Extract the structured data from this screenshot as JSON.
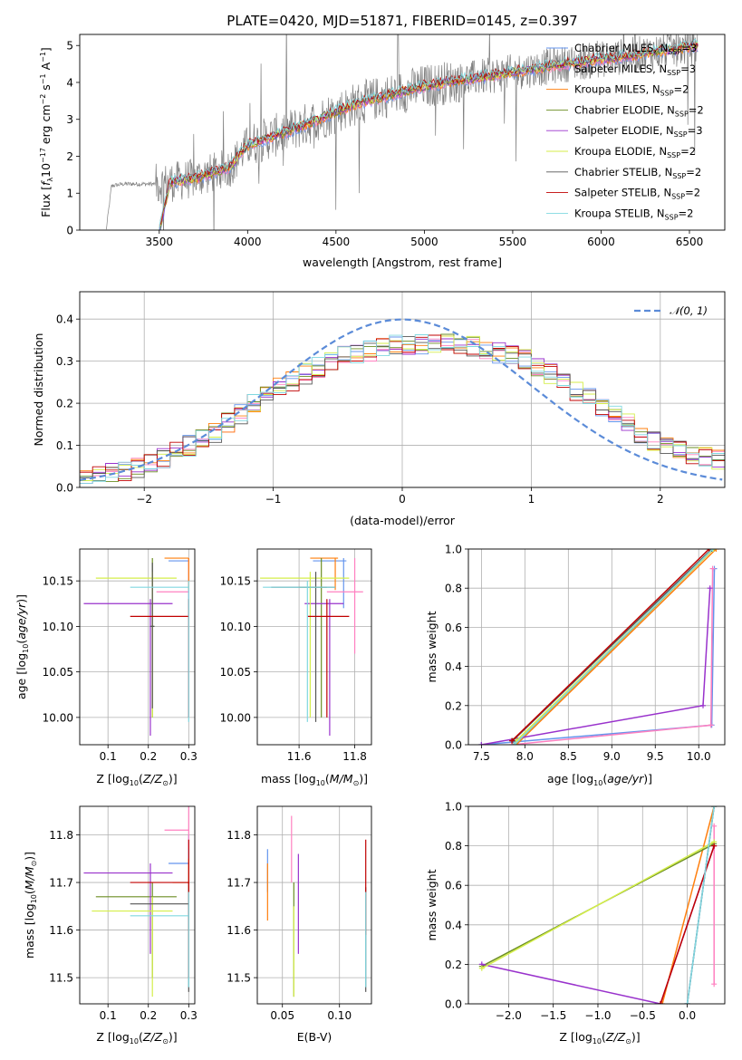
{
  "chart_data": [
    {
      "id": "spectrum",
      "type": "line",
      "title": "PLATE=0420, MJD=51871, FIBERID=0145, z=0.397",
      "xlabel": "wavelength [Angstrom, rest frame]",
      "ylabel": "Flux [fλ10⁻¹⁷ erg cm⁻² s⁻¹ A⁻¹]",
      "xlim": [
        3050,
        6700
      ],
      "ylim": [
        0,
        5.3
      ],
      "xticks": [
        "3500",
        "4000",
        "4500",
        "5000",
        "5500",
        "6000",
        "6500"
      ],
      "yticks": [
        "0",
        "1",
        "2",
        "3",
        "4",
        "5"
      ],
      "grid": false,
      "legend_position": "upper-right",
      "data_color": "#808080",
      "data_range": [
        3200,
        6550
      ],
      "model_range": [
        3500,
        6550
      ],
      "data_continuum": [
        [
          3200,
          0.0
        ],
        [
          3230,
          1.2
        ],
        [
          3300,
          1.25
        ],
        [
          3500,
          1.25
        ],
        [
          3700,
          1.4
        ],
        [
          3900,
          1.7
        ],
        [
          4000,
          2.3
        ],
        [
          4300,
          2.8
        ],
        [
          4600,
          3.4
        ],
        [
          5000,
          3.9
        ],
        [
          5400,
          4.2
        ],
        [
          5800,
          4.5
        ],
        [
          6200,
          4.75
        ],
        [
          6550,
          5.0
        ]
      ],
      "series": [
        {
          "name": "Chabrier MILES, N<sub>SSP</sub>=3",
          "color": "#6495ed"
        },
        {
          "name": "Salpeter MILES, N<sub>SSP</sub>=3",
          "color": "#ff80c0"
        },
        {
          "name": "Kroupa MILES, N<sub>SSP</sub>=2",
          "color": "#ff7f0e"
        },
        {
          "name": "Chabrier ELODIE, N<sub>SSP</sub>=2",
          "color": "#6b8e23"
        },
        {
          "name": "Salpeter ELODIE, N<sub>SSP</sub>=3",
          "color": "#9932cc"
        },
        {
          "name": "Kroupa ELODIE, N<sub>SSP</sub>=2",
          "color": "#d4ee4a"
        },
        {
          "name": "Chabrier STELIB, N<sub>SSP</sub>=2",
          "color": "#555555"
        },
        {
          "name": "Salpeter STELIB, N<sub>SSP</sub>=2",
          "color": "#c00000"
        },
        {
          "name": "Kroupa STELIB, N<sub>SSP</sub>=2",
          "color": "#80d8e0"
        }
      ]
    },
    {
      "id": "residuals",
      "type": "line",
      "xlabel": "(data-model)/error",
      "ylabel": "Normed distribution",
      "xlim": [
        -2.5,
        2.5
      ],
      "ylim": [
        0,
        0.465
      ],
      "xticks": [
        -2,
        -1,
        0,
        1,
        2
      ],
      "yticks": [
        0.0,
        0.1,
        0.2,
        0.3,
        0.4
      ],
      "grid": true,
      "legend_position": "upper-right",
      "reference_curve": {
        "name": "𝒩(0, 1)",
        "mu": 0,
        "sigma": 1,
        "color": "#5b8bd8"
      },
      "bin_width": 0.1,
      "histogram_envelope": [
        [
          -2.5,
          0.02
        ],
        [
          -2.0,
          0.05
        ],
        [
          -1.5,
          0.12
        ],
        [
          -1.0,
          0.23
        ],
        [
          -0.5,
          0.31
        ],
        [
          0.0,
          0.34
        ],
        [
          0.5,
          0.34
        ],
        [
          1.0,
          0.3
        ],
        [
          1.5,
          0.2
        ],
        [
          2.0,
          0.1
        ],
        [
          2.5,
          0.06
        ]
      ]
    },
    {
      "id": "age_vs_Z",
      "type": "scatter",
      "xlabel": "Z [log₁₀(Z/Z⊙)]",
      "ylabel": "age  [log₁₀(age/yr)]",
      "xlim": [
        0.03,
        0.315
      ],
      "ylim": [
        9.97,
        10.185
      ],
      "xticks": [
        0.1,
        0.2,
        0.3
      ],
      "yticks": [
        10.0,
        10.05,
        10.1,
        10.15
      ],
      "grid": true,
      "points": [
        {
          "series": 0,
          "x": 0.3,
          "y": 10.172,
          "xerr": [
            0.25,
            0.3
          ],
          "yerr": [
            10.12,
            10.175
          ]
        },
        {
          "series": 1,
          "x": 0.3,
          "y": 10.138,
          "xerr": [
            0.22,
            0.3
          ],
          "yerr": [
            10.0,
            10.175
          ]
        },
        {
          "series": 2,
          "x": 0.3,
          "y": 10.175,
          "xerr": [
            0.24,
            0.3
          ],
          "yerr": [
            10.14,
            10.175
          ]
        },
        {
          "series": 3,
          "x": 0.21,
          "y": 10.1,
          "xerr": [
            0.205,
            0.215
          ],
          "yerr": [
            10.0,
            10.175
          ]
        },
        {
          "series": 4,
          "x": 0.205,
          "y": 10.125,
          "xerr": [
            0.04,
            0.26
          ],
          "yerr": [
            9.98,
            10.13
          ]
        },
        {
          "series": 5,
          "x": 0.21,
          "y": 10.153,
          "xerr": [
            0.07,
            0.27
          ],
          "yerr": [
            10.0,
            10.16
          ]
        },
        {
          "series": 6,
          "x": 0.21,
          "y": 10.1,
          "xerr": [
            0.205,
            0.215
          ],
          "yerr": [
            10.01,
            10.17
          ]
        },
        {
          "series": 7,
          "x": 0.3,
          "y": 10.111,
          "xerr": [
            0.155,
            0.3
          ],
          "yerr": [
            10.0,
            10.13
          ]
        },
        {
          "series": 8,
          "x": 0.3,
          "y": 10.143,
          "xerr": [
            0.155,
            0.3
          ],
          "yerr": [
            9.995,
            10.15
          ]
        }
      ]
    },
    {
      "id": "age_vs_mass",
      "type": "scatter",
      "xlabel": "mass [log₁₀(M/M⊙)]",
      "xlim": [
        11.45,
        11.86
      ],
      "ylim": [
        9.97,
        10.185
      ],
      "xticks": [
        11.6,
        11.8
      ],
      "yticks": [
        10.0,
        10.05,
        10.1,
        10.15
      ],
      "grid": true,
      "points": [
        {
          "series": 0,
          "x": 11.76,
          "y": 10.172,
          "xerr": [
            11.65,
            11.77
          ],
          "yerr": [
            10.12,
            10.175
          ]
        },
        {
          "series": 1,
          "x": 11.8,
          "y": 10.138,
          "xerr": [
            11.7,
            11.83
          ],
          "yerr": [
            10.07,
            10.175
          ]
        },
        {
          "series": 2,
          "x": 11.73,
          "y": 10.175,
          "xerr": [
            11.64,
            11.74
          ],
          "yerr": [
            10.14,
            10.175
          ]
        },
        {
          "series": 3,
          "x": 11.68,
          "y": 10.143,
          "xerr": [
            11.6,
            11.7
          ],
          "yerr": [
            10.0,
            10.175
          ]
        },
        {
          "series": 4,
          "x": 11.71,
          "y": 10.125,
          "xerr": [
            11.62,
            11.76
          ],
          "yerr": [
            9.98,
            10.13
          ]
        },
        {
          "series": 5,
          "x": 11.64,
          "y": 10.153,
          "xerr": [
            11.46,
            11.78
          ],
          "yerr": [
            10.0,
            10.16
          ]
        },
        {
          "series": 6,
          "x": 11.66,
          "y": 10.143,
          "xerr": [
            11.5,
            11.73
          ],
          "yerr": [
            9.995,
            10.16
          ]
        },
        {
          "series": 7,
          "x": 11.7,
          "y": 10.111,
          "xerr": [
            11.63,
            11.78
          ],
          "yerr": [
            10.0,
            10.13
          ]
        },
        {
          "series": 8,
          "x": 11.63,
          "y": 10.143,
          "xerr": [
            11.47,
            11.73
          ],
          "yerr": [
            9.995,
            10.15
          ]
        }
      ]
    },
    {
      "id": "mass_weight_vs_age",
      "type": "line",
      "xlabel": "age  [log₁₀(age/yr)]",
      "ylabel": "mass weight",
      "xlim": [
        7.35,
        10.3
      ],
      "ylim": [
        0,
        1.0
      ],
      "xticks": [
        7.5,
        8.0,
        8.5,
        9.0,
        9.5,
        10.0
      ],
      "yticks": [
        0.0,
        0.2,
        0.4,
        0.6,
        0.8,
        1.0
      ],
      "grid": true,
      "series_points": [
        {
          "series": 0,
          "points": [
            [
              7.5,
              0.0
            ],
            [
              10.15,
              0.1
            ],
            [
              10.18,
              0.9
            ]
          ]
        },
        {
          "series": 1,
          "points": [
            [
              7.85,
              0.0
            ],
            [
              10.14,
              0.1
            ],
            [
              10.16,
              0.9
            ]
          ]
        },
        {
          "series": 2,
          "points": [
            [
              7.9,
              0.0
            ],
            [
              10.2,
              1.0
            ]
          ]
        },
        {
          "series": 3,
          "points": [
            [
              7.88,
              0.0
            ],
            [
              10.17,
              1.0
            ]
          ]
        },
        {
          "series": 4,
          "points": [
            [
              7.5,
              0.0
            ],
            [
              10.05,
              0.2
            ],
            [
              10.13,
              0.8
            ]
          ]
        },
        {
          "series": 5,
          "points": [
            [
              7.9,
              0.02
            ],
            [
              10.17,
              1.0
            ]
          ]
        },
        {
          "series": 6,
          "points": [
            [
              7.86,
              0.02
            ],
            [
              10.15,
              1.0
            ]
          ]
        },
        {
          "series": 7,
          "points": [
            [
              7.85,
              0.02
            ],
            [
              10.12,
              1.0
            ]
          ]
        },
        {
          "series": 8,
          "points": [
            [
              7.88,
              0.0
            ],
            [
              10.16,
              1.0
            ]
          ]
        }
      ]
    },
    {
      "id": "mass_vs_Z",
      "type": "scatter",
      "xlabel": "Z [log₁₀(Z/Z⊙)]",
      "ylabel": "mass [log₁₀(M/M⊙)]",
      "xlim": [
        0.03,
        0.315
      ],
      "ylim": [
        11.445,
        11.86
      ],
      "xticks": [
        0.1,
        0.2,
        0.3
      ],
      "yticks": [
        11.5,
        11.6,
        11.7,
        11.8
      ],
      "grid": true,
      "points": [
        {
          "series": 0,
          "x": 0.3,
          "y": 11.74,
          "xerr": [
            0.25,
            0.3
          ],
          "yerr": [
            11.7,
            11.8
          ]
        },
        {
          "series": 1,
          "x": 0.3,
          "y": 11.81,
          "xerr": [
            0.24,
            0.3
          ],
          "yerr": [
            11.77,
            11.86
          ]
        },
        {
          "series": 2,
          "x": 0.3,
          "y": 11.7,
          "xerr": [
            0.26,
            0.3
          ],
          "yerr": [
            11.65,
            11.75
          ]
        },
        {
          "series": 3,
          "x": 0.21,
          "y": 11.67,
          "xerr": [
            0.07,
            0.27
          ],
          "yerr": [
            11.5,
            11.7
          ]
        },
        {
          "series": 4,
          "x": 0.205,
          "y": 11.72,
          "xerr": [
            0.04,
            0.26
          ],
          "yerr": [
            11.55,
            11.74
          ]
        },
        {
          "series": 5,
          "x": 0.21,
          "y": 11.64,
          "xerr": [
            0.06,
            0.26
          ],
          "yerr": [
            11.46,
            11.67
          ]
        },
        {
          "series": 6,
          "x": 0.3,
          "y": 11.655,
          "xerr": [
            0.155,
            0.3
          ],
          "yerr": [
            11.47,
            11.7
          ]
        },
        {
          "series": 7,
          "x": 0.3,
          "y": 11.7,
          "xerr": [
            0.155,
            0.3
          ],
          "yerr": [
            11.5,
            11.79
          ]
        },
        {
          "series": 8,
          "x": 0.3,
          "y": 11.63,
          "xerr": [
            0.155,
            0.3
          ],
          "yerr": [
            11.48,
            11.68
          ]
        }
      ]
    },
    {
      "id": "mass_vs_ebv",
      "type": "scatter",
      "xlabel": "E(B-V)",
      "xlim": [
        0.028,
        0.128
      ],
      "ylim": [
        11.445,
        11.86
      ],
      "xticks": [
        0.05,
        0.1
      ],
      "yticks": [
        11.5,
        11.6,
        11.7,
        11.8
      ],
      "grid": true,
      "points": [
        {
          "series": 0,
          "x": 0.037,
          "y": 11.72,
          "yerr": [
            11.68,
            11.77
          ]
        },
        {
          "series": 1,
          "x": 0.058,
          "y": 11.77,
          "yerr": [
            11.7,
            11.84
          ]
        },
        {
          "series": 2,
          "x": 0.037,
          "y": 11.68,
          "yerr": [
            11.62,
            11.74
          ]
        },
        {
          "series": 3,
          "x": 0.06,
          "y": 11.6,
          "yerr": [
            11.46,
            11.7
          ]
        },
        {
          "series": 4,
          "x": 0.064,
          "y": 11.66,
          "yerr": [
            11.55,
            11.76
          ]
        },
        {
          "series": 5,
          "x": 0.06,
          "y": 11.56,
          "yerr": [
            11.46,
            11.65
          ]
        },
        {
          "series": 6,
          "x": 0.123,
          "y": 11.6,
          "yerr": [
            11.47,
            11.69
          ]
        },
        {
          "series": 7,
          "x": 0.123,
          "y": 11.7,
          "yerr": [
            11.59,
            11.79
          ]
        },
        {
          "series": 8,
          "x": 0.123,
          "y": 11.6,
          "yerr": [
            11.48,
            11.68
          ]
        }
      ]
    },
    {
      "id": "mass_weight_vs_Z",
      "type": "line",
      "xlabel": "Z [log₁₀(Z/Z⊙)]",
      "ylabel": "mass weight",
      "xlim": [
        -2.45,
        0.42
      ],
      "ylim": [
        0,
        1.0
      ],
      "xticks": [
        -2.0,
        -1.5,
        -1.0,
        -0.5,
        0.0
      ],
      "yticks": [
        0.0,
        0.2,
        0.4,
        0.6,
        0.8,
        1.0
      ],
      "grid": true,
      "series_points": [
        {
          "series": 0,
          "points": [
            [
              0.0,
              0.0
            ],
            [
              0.3,
              1.0
            ]
          ]
        },
        {
          "series": 1,
          "points": [
            [
              0.3,
              0.1
            ],
            [
              0.3,
              0.9
            ]
          ]
        },
        {
          "series": 2,
          "points": [
            [
              -0.28,
              0.0
            ],
            [
              0.3,
              1.0
            ]
          ]
        },
        {
          "series": 3,
          "points": [
            [
              -2.3,
              0.19
            ],
            [
              0.3,
              0.81
            ]
          ]
        },
        {
          "series": 4,
          "points": [
            [
              -2.3,
              0.2
            ],
            [
              -0.3,
              0.0
            ],
            [
              0.3,
              0.8
            ]
          ]
        },
        {
          "series": 5,
          "points": [
            [
              -2.3,
              0.18
            ],
            [
              0.3,
              0.82
            ]
          ]
        },
        {
          "series": 6,
          "points": [
            [
              0.0,
              0.0
            ],
            [
              0.3,
              1.0
            ]
          ]
        },
        {
          "series": 7,
          "points": [
            [
              -0.3,
              0.0
            ],
            [
              0.3,
              0.8
            ]
          ]
        },
        {
          "series": 8,
          "points": [
            [
              0.0,
              0.0
            ],
            [
              0.3,
              1.0
            ]
          ]
        }
      ]
    }
  ]
}
